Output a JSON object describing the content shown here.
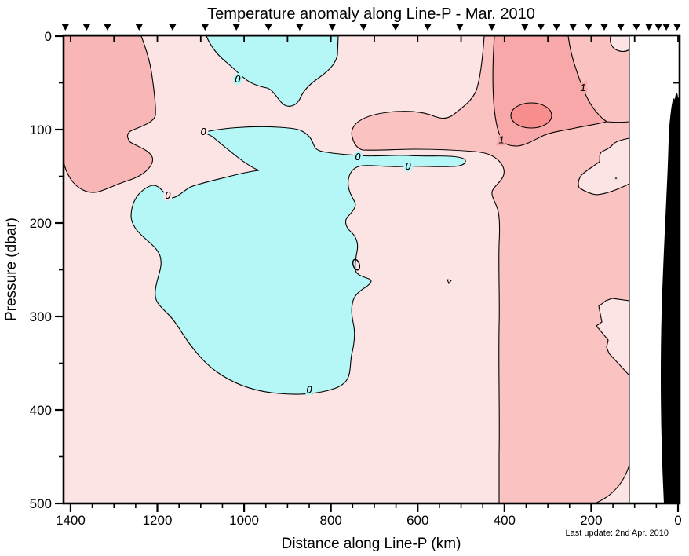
{
  "title": "Temperature anomaly along Line-P - Mar. 2010",
  "last_update": "Last update: 2nd Apr. 2010",
  "chart_data": {
    "type": "contour",
    "title": "Temperature anomaly along Line-P - Mar. 2010",
    "xlabel": "Distance along Line-P (km)",
    "ylabel": "Pressure (dbar)",
    "x_axis": {
      "range_km": [
        1400,
        0
      ],
      "reversed": true,
      "major_ticks": [
        1400,
        1200,
        1000,
        800,
        600,
        400,
        200,
        0
      ],
      "minor_tick_step_km": 50,
      "top_tick_step_km": 100
    },
    "y_axis": {
      "range_dbar": [
        0,
        500
      ],
      "inverted": true,
      "major_ticks": [
        0,
        100,
        200,
        300,
        400,
        500
      ],
      "minor_tick_step_dbar": 50
    },
    "units": "degrees C anomaly",
    "contour_interval": 0.5,
    "labeled_levels": [
      0,
      1
    ],
    "station_markers_km": [
      2,
      27,
      45,
      67,
      96,
      132,
      170,
      206,
      242,
      280,
      316,
      353,
      429,
      503,
      577,
      651,
      725,
      797,
      872,
      944,
      1018,
      1090,
      1165,
      1242,
      1315,
      1363,
      1412
    ],
    "contour_labels": [
      {
        "level": "0",
        "km": 1015,
        "dbar": 46
      },
      {
        "level": "0",
        "km": 1094,
        "dbar": 102
      },
      {
        "level": "0",
        "km": 738,
        "dbar": 129
      },
      {
        "level": "0",
        "km": 622,
        "dbar": 139
      },
      {
        "level": "0",
        "km": 1176,
        "dbar": 170
      },
      {
        "level": "0",
        "km": 850,
        "dbar": 378
      },
      {
        "level": "1",
        "km": 219,
        "dbar": 55
      },
      {
        "level": "1",
        "km": 407,
        "dbar": 111
      }
    ],
    "features": [
      {
        "name": "surface cool pool (<0)",
        "km_extent": [
          790,
          1090
        ],
        "dbar_extent": [
          0,
          70
        ]
      },
      {
        "name": "subsurface cool pool (<0)",
        "km_extent": [
          740,
          1270
        ],
        "dbar_extent": [
          120,
          385
        ]
      },
      {
        "name": "thin cool layer (<0)",
        "km_extent": [
          490,
          840
        ],
        "dbar_extent": [
          124,
          142
        ]
      },
      {
        "name": "warm column near coast (>1)",
        "km_extent": [
          0,
          430
        ],
        "dbar_extent": [
          0,
          500
        ]
      },
      {
        "name": "warm core maximum (>1.5)",
        "km_extent": [
          291,
          383
        ],
        "dbar_extent": [
          72,
          98
        ]
      },
      {
        "name": "warm tongue (>1)",
        "km_extent": [
          423,
          758
        ],
        "dbar_extent": [
          81,
          123
        ]
      },
      {
        "name": "offshore warm patch (>0.5)",
        "km_extent": [
          1235,
          1420
        ],
        "dbar_extent": [
          0,
          180
        ]
      },
      {
        "name": "no-data white strip near shore",
        "km_extent": [
          0,
          115
        ],
        "dbar_extent": [
          0,
          500
        ]
      },
      {
        "name": "black bathymetry silhouette",
        "km_extent": [
          0,
          45
        ],
        "dbar_extent": [
          65,
          500
        ]
      }
    ],
    "colors": {
      "negative": "#b5f6f6",
      "band_0_05": "#fce4e4",
      "band_05_1": "#fbc2c2",
      "band_1_15": "#f8a8a8",
      "band_15_2": "#f88e8e",
      "left_patch": "#f9b6b6",
      "bathymetry": "#000000",
      "line": "#000000"
    }
  }
}
